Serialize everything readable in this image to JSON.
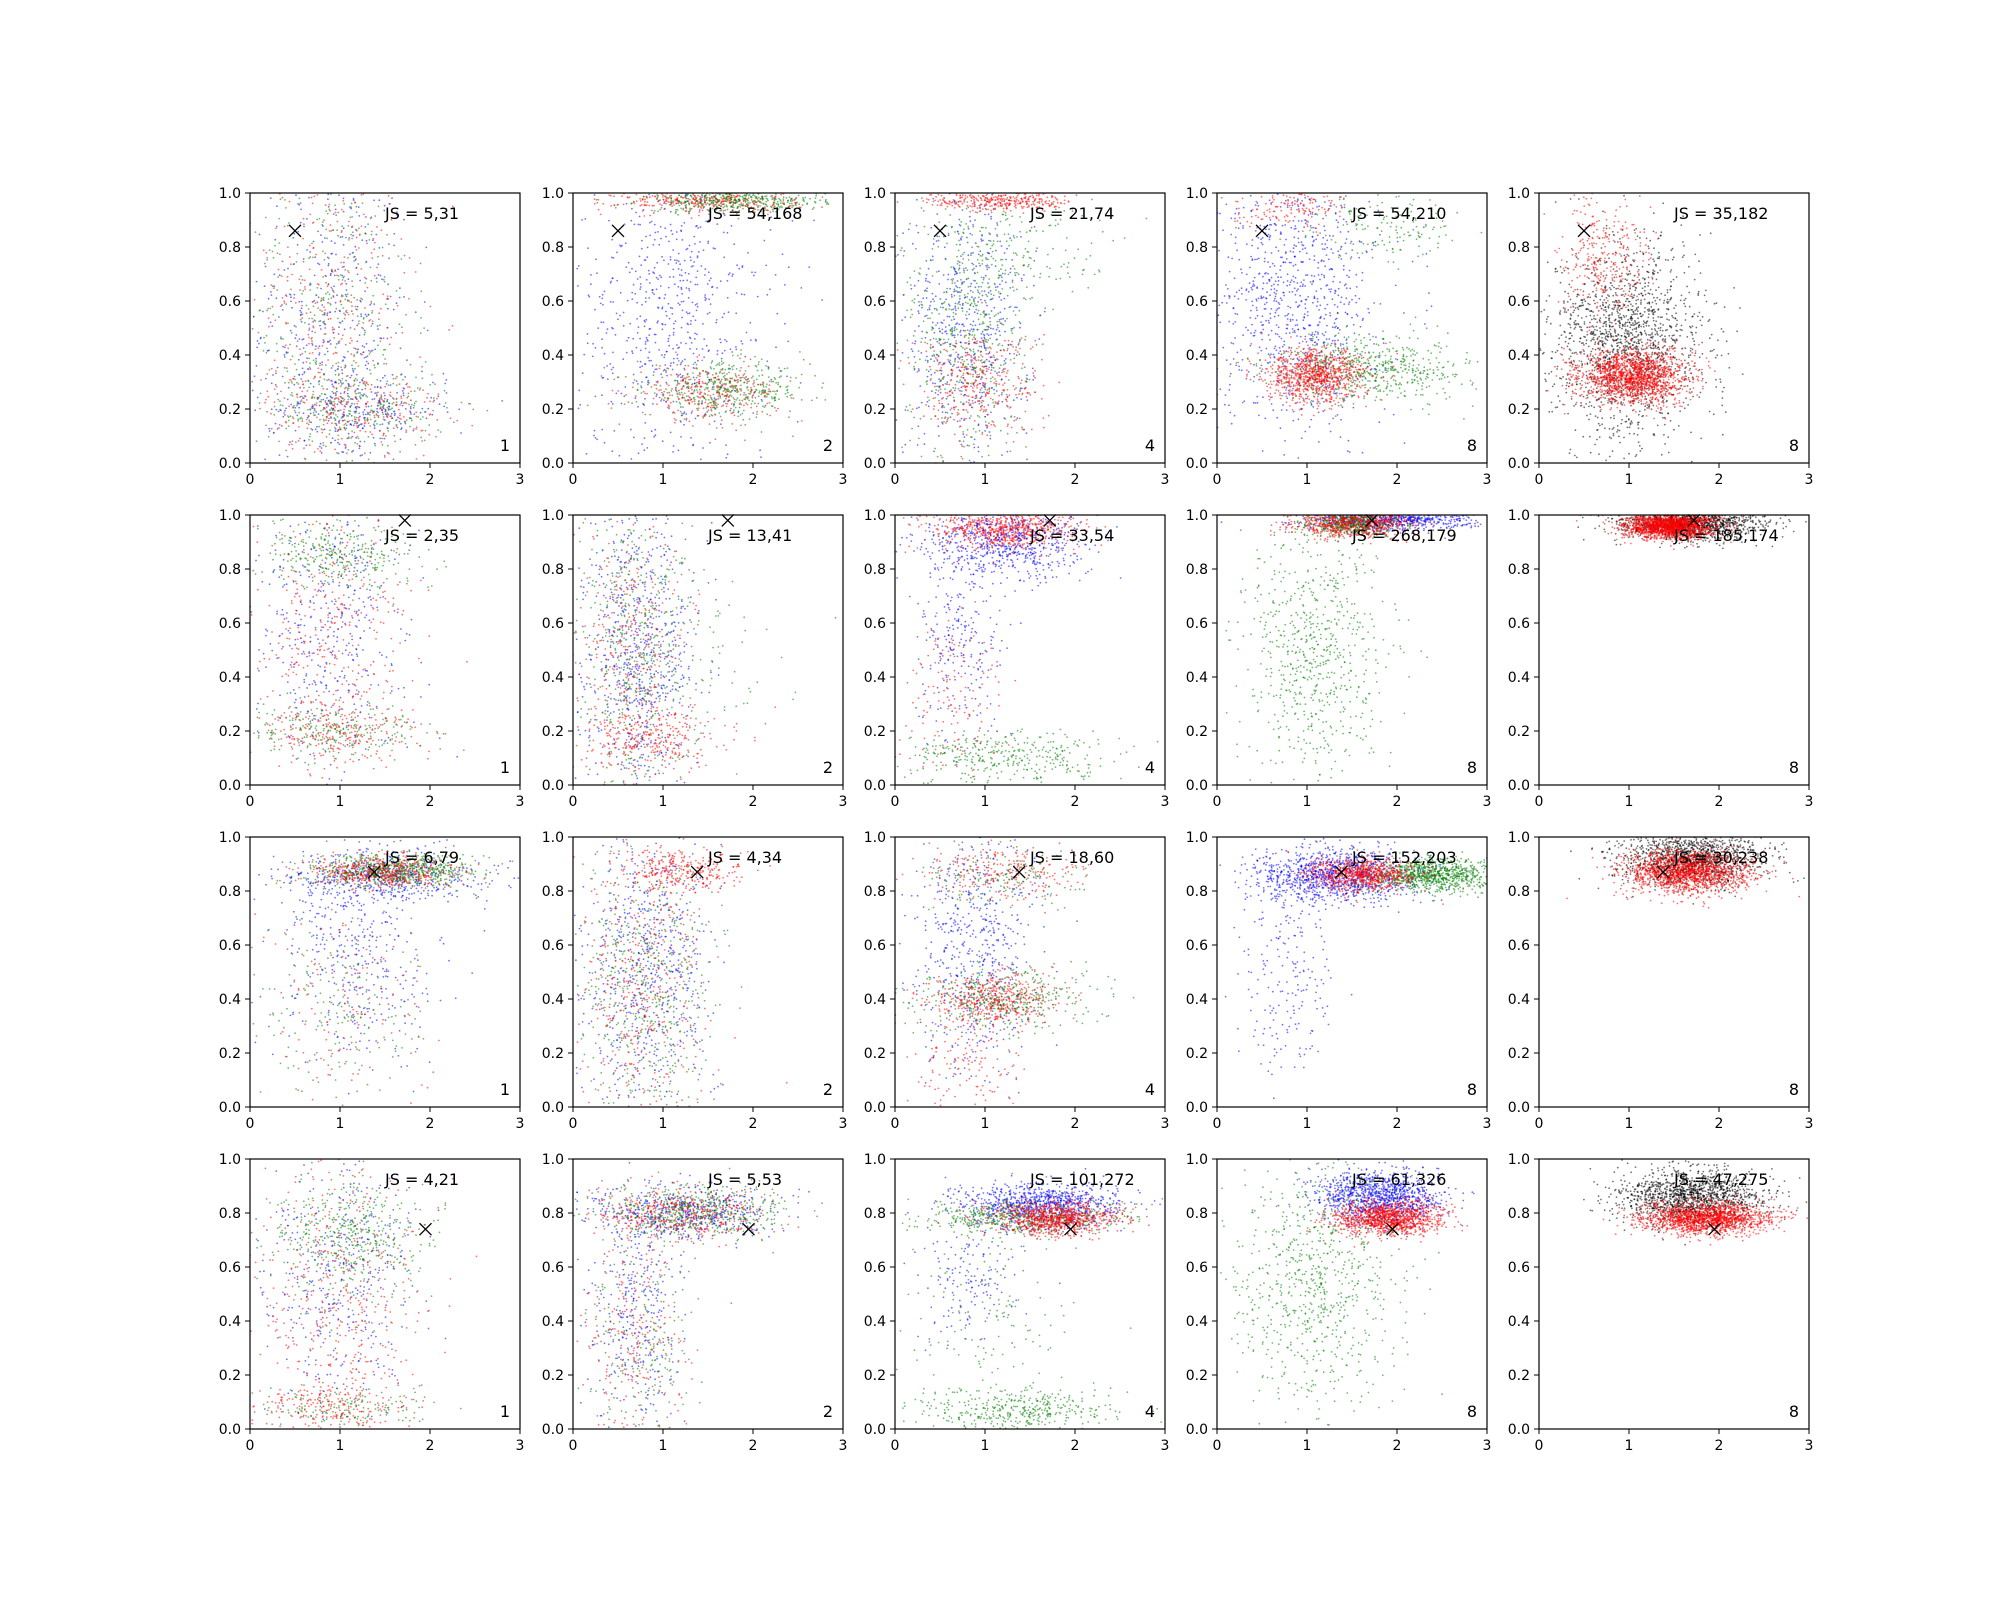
{
  "figure": {
    "rows": 4,
    "cols": 5
  },
  "axes_defaults": {
    "xlim": [
      0,
      3
    ],
    "ylim": [
      0,
      1
    ],
    "xticks": [
      0,
      1,
      2,
      3
    ],
    "yticks": [
      0.0,
      0.2,
      0.4,
      0.6,
      0.8,
      1.0
    ],
    "xtick_labels": [
      "0",
      "1",
      "2",
      "3"
    ],
    "ytick_labels": [
      "0.0",
      "0.2",
      "0.4",
      "0.6",
      "0.8",
      "1.0"
    ]
  },
  "colors": {
    "blue": "#0000ff",
    "green": "#008000",
    "red": "#ff0000",
    "black": "#000000"
  },
  "chart_data": [
    {
      "type": "scatter",
      "row": 0,
      "col": 0,
      "annotation": "JS = 5,31",
      "corner_label": "1",
      "marker": {
        "x": 0.5,
        "y": 0.86
      },
      "clusters": [
        {
          "color": "blue",
          "cx": 0.9,
          "cy": 0.55,
          "sx": 0.45,
          "sy": 0.3,
          "n": 420
        },
        {
          "color": "red",
          "cx": 0.9,
          "cy": 0.55,
          "sx": 0.45,
          "sy": 0.3,
          "n": 380
        },
        {
          "color": "green",
          "cx": 0.9,
          "cy": 0.55,
          "sx": 0.45,
          "sy": 0.3,
          "n": 380
        },
        {
          "color": "blue",
          "cx": 1.2,
          "cy": 0.2,
          "sx": 0.5,
          "sy": 0.07,
          "n": 250
        },
        {
          "color": "green",
          "cx": 1.2,
          "cy": 0.2,
          "sx": 0.5,
          "sy": 0.07,
          "n": 260
        },
        {
          "color": "red",
          "cx": 1.2,
          "cy": 0.2,
          "sx": 0.5,
          "sy": 0.07,
          "n": 220
        }
      ]
    },
    {
      "type": "scatter",
      "row": 0,
      "col": 1,
      "annotation": "JS = 54,168",
      "corner_label": "2",
      "marker": {
        "x": 0.5,
        "y": 0.86
      },
      "clusters": [
        {
          "color": "blue",
          "cx": 1.1,
          "cy": 0.55,
          "sx": 0.55,
          "sy": 0.3,
          "n": 700
        },
        {
          "color": "green",
          "cx": 1.7,
          "cy": 0.27,
          "sx": 0.45,
          "sy": 0.05,
          "n": 450
        },
        {
          "color": "red",
          "cx": 1.5,
          "cy": 0.26,
          "sx": 0.4,
          "sy": 0.05,
          "n": 300
        },
        {
          "color": "red",
          "cx": 1.5,
          "cy": 0.97,
          "sx": 0.5,
          "sy": 0.02,
          "n": 350
        },
        {
          "color": "green",
          "cx": 1.8,
          "cy": 0.97,
          "sx": 0.5,
          "sy": 0.02,
          "n": 400
        }
      ]
    },
    {
      "type": "scatter",
      "row": 0,
      "col": 2,
      "annotation": "JS = 21,74",
      "corner_label": "4",
      "marker": {
        "x": 0.5,
        "y": 0.86
      },
      "clusters": [
        {
          "color": "blue",
          "cx": 0.8,
          "cy": 0.5,
          "sx": 0.35,
          "sy": 0.25,
          "n": 600
        },
        {
          "color": "green",
          "cx": 0.8,
          "cy": 0.5,
          "sx": 0.35,
          "sy": 0.25,
          "n": 600
        },
        {
          "color": "red",
          "cx": 0.9,
          "cy": 0.3,
          "sx": 0.35,
          "sy": 0.1,
          "n": 350
        },
        {
          "color": "red",
          "cx": 1.2,
          "cy": 0.97,
          "sx": 0.4,
          "sy": 0.02,
          "n": 350
        },
        {
          "color": "green",
          "cx": 1.5,
          "cy": 0.8,
          "sx": 0.5,
          "sy": 0.1,
          "n": 120
        }
      ]
    },
    {
      "type": "scatter",
      "row": 0,
      "col": 3,
      "annotation": "JS = 54,210",
      "corner_label": "8",
      "marker": {
        "x": 0.5,
        "y": 0.86
      },
      "clusters": [
        {
          "color": "blue",
          "cx": 0.9,
          "cy": 0.6,
          "sx": 0.45,
          "sy": 0.25,
          "n": 900
        },
        {
          "color": "green",
          "cx": 1.7,
          "cy": 0.35,
          "sx": 0.55,
          "sy": 0.06,
          "n": 600
        },
        {
          "color": "red",
          "cx": 1.1,
          "cy": 0.32,
          "sx": 0.28,
          "sy": 0.05,
          "n": 900
        },
        {
          "color": "red",
          "cx": 0.8,
          "cy": 0.95,
          "sx": 0.3,
          "sy": 0.04,
          "n": 150
        },
        {
          "color": "green",
          "cx": 1.9,
          "cy": 0.88,
          "sx": 0.4,
          "sy": 0.06,
          "n": 150
        }
      ]
    },
    {
      "type": "scatter",
      "row": 0,
      "col": 4,
      "annotation": "JS = 35,182",
      "corner_label": "8",
      "marker": {
        "x": 0.5,
        "y": 0.86
      },
      "clusters": [
        {
          "color": "black",
          "cx": 1.0,
          "cy": 0.45,
          "sx": 0.42,
          "sy": 0.18,
          "n": 1600
        },
        {
          "color": "red",
          "cx": 1.05,
          "cy": 0.32,
          "sx": 0.3,
          "sy": 0.05,
          "n": 1600
        },
        {
          "color": "red",
          "cx": 0.7,
          "cy": 0.75,
          "sx": 0.25,
          "sy": 0.12,
          "n": 300
        }
      ]
    },
    {
      "type": "scatter",
      "row": 1,
      "col": 0,
      "annotation": "JS = 2,35",
      "corner_label": "1",
      "marker": {
        "x": 1.72,
        "y": 0.98
      },
      "clusters": [
        {
          "color": "blue",
          "cx": 0.9,
          "cy": 0.55,
          "sx": 0.45,
          "sy": 0.3,
          "n": 450
        },
        {
          "color": "red",
          "cx": 0.9,
          "cy": 0.55,
          "sx": 0.45,
          "sy": 0.3,
          "n": 400
        },
        {
          "color": "green",
          "cx": 1.0,
          "cy": 0.85,
          "sx": 0.45,
          "sy": 0.06,
          "n": 300
        },
        {
          "color": "green",
          "cx": 1.0,
          "cy": 0.2,
          "sx": 0.5,
          "sy": 0.05,
          "n": 250
        },
        {
          "color": "red",
          "cx": 1.0,
          "cy": 0.2,
          "sx": 0.5,
          "sy": 0.05,
          "n": 200
        }
      ]
    },
    {
      "type": "scatter",
      "row": 1,
      "col": 1,
      "annotation": "JS = 13,41",
      "corner_label": "2",
      "marker": {
        "x": 1.72,
        "y": 0.98
      },
      "clusters": [
        {
          "color": "blue",
          "cx": 0.7,
          "cy": 0.5,
          "sx": 0.32,
          "sy": 0.28,
          "n": 700
        },
        {
          "color": "green",
          "cx": 0.7,
          "cy": 0.5,
          "sx": 0.32,
          "sy": 0.28,
          "n": 450
        },
        {
          "color": "red",
          "cx": 0.7,
          "cy": 0.5,
          "sx": 0.32,
          "sy": 0.28,
          "n": 400
        },
        {
          "color": "red",
          "cx": 0.9,
          "cy": 0.17,
          "sx": 0.4,
          "sy": 0.05,
          "n": 250
        },
        {
          "color": "green",
          "cx": 1.2,
          "cy": 0.45,
          "sx": 0.5,
          "sy": 0.2,
          "n": 100
        }
      ]
    },
    {
      "type": "scatter",
      "row": 1,
      "col": 2,
      "annotation": "JS = 33,54",
      "corner_label": "4",
      "marker": {
        "x": 1.72,
        "y": 0.98
      },
      "clusters": [
        {
          "color": "blue",
          "cx": 1.2,
          "cy": 0.9,
          "sx": 0.45,
          "sy": 0.07,
          "n": 700
        },
        {
          "color": "red",
          "cx": 1.2,
          "cy": 0.95,
          "sx": 0.4,
          "sy": 0.04,
          "n": 700
        },
        {
          "color": "blue",
          "cx": 0.7,
          "cy": 0.55,
          "sx": 0.25,
          "sy": 0.2,
          "n": 250
        },
        {
          "color": "green",
          "cx": 1.3,
          "cy": 0.1,
          "sx": 0.6,
          "sy": 0.05,
          "n": 350
        },
        {
          "color": "red",
          "cx": 0.6,
          "cy": 0.3,
          "sx": 0.3,
          "sy": 0.15,
          "n": 150
        }
      ]
    },
    {
      "type": "scatter",
      "row": 1,
      "col": 3,
      "annotation": "JS = 268,179",
      "corner_label": "8",
      "marker": {
        "x": 1.72,
        "y": 0.98
      },
      "clusters": [
        {
          "color": "blue",
          "cx": 1.9,
          "cy": 0.98,
          "sx": 0.45,
          "sy": 0.02,
          "n": 700
        },
        {
          "color": "green",
          "cx": 1.1,
          "cy": 0.5,
          "sx": 0.4,
          "sy": 0.25,
          "n": 700
        },
        {
          "color": "red",
          "cx": 1.5,
          "cy": 0.97,
          "sx": 0.3,
          "sy": 0.025,
          "n": 900
        },
        {
          "color": "green",
          "cx": 1.5,
          "cy": 0.97,
          "sx": 0.3,
          "sy": 0.025,
          "n": 300
        }
      ]
    },
    {
      "type": "scatter",
      "row": 1,
      "col": 4,
      "annotation": "JS = 185,174",
      "corner_label": "8",
      "marker": {
        "x": 1.72,
        "y": 0.98
      },
      "clusters": [
        {
          "color": "black",
          "cx": 1.7,
          "cy": 0.97,
          "sx": 0.4,
          "sy": 0.03,
          "n": 1200
        },
        {
          "color": "red",
          "cx": 1.45,
          "cy": 0.96,
          "sx": 0.25,
          "sy": 0.025,
          "n": 1800
        }
      ]
    },
    {
      "type": "scatter",
      "row": 2,
      "col": 0,
      "annotation": "JS = 6,79",
      "corner_label": "1",
      "marker": {
        "x": 1.38,
        "y": 0.87
      },
      "clusters": [
        {
          "color": "blue",
          "cx": 1.5,
          "cy": 0.85,
          "sx": 0.55,
          "sy": 0.05,
          "n": 500
        },
        {
          "color": "green",
          "cx": 1.6,
          "cy": 0.87,
          "sx": 0.45,
          "sy": 0.03,
          "n": 700
        },
        {
          "color": "red",
          "cx": 1.5,
          "cy": 0.87,
          "sx": 0.4,
          "sy": 0.03,
          "n": 500
        },
        {
          "color": "blue",
          "cx": 1.2,
          "cy": 0.55,
          "sx": 0.45,
          "sy": 0.2,
          "n": 350
        },
        {
          "color": "green",
          "cx": 1.0,
          "cy": 0.35,
          "sx": 0.5,
          "sy": 0.2,
          "n": 200
        },
        {
          "color": "red",
          "cx": 1.0,
          "cy": 0.35,
          "sx": 0.5,
          "sy": 0.2,
          "n": 150
        }
      ]
    },
    {
      "type": "scatter",
      "row": 2,
      "col": 1,
      "annotation": "JS = 4,34",
      "corner_label": "2",
      "marker": {
        "x": 1.38,
        "y": 0.87
      },
      "clusters": [
        {
          "color": "blue",
          "cx": 0.8,
          "cy": 0.5,
          "sx": 0.38,
          "sy": 0.28,
          "n": 650
        },
        {
          "color": "green",
          "cx": 0.8,
          "cy": 0.45,
          "sx": 0.38,
          "sy": 0.28,
          "n": 550
        },
        {
          "color": "red",
          "cx": 0.8,
          "cy": 0.45,
          "sx": 0.38,
          "sy": 0.28,
          "n": 450
        },
        {
          "color": "red",
          "cx": 1.2,
          "cy": 0.88,
          "sx": 0.35,
          "sy": 0.04,
          "n": 300
        }
      ]
    },
    {
      "type": "scatter",
      "row": 2,
      "col": 2,
      "annotation": "JS = 18,60",
      "corner_label": "4",
      "marker": {
        "x": 1.38,
        "y": 0.87
      },
      "clusters": [
        {
          "color": "blue",
          "cx": 0.9,
          "cy": 0.6,
          "sx": 0.35,
          "sy": 0.25,
          "n": 600
        },
        {
          "color": "red",
          "cx": 1.1,
          "cy": 0.4,
          "sx": 0.35,
          "sy": 0.05,
          "n": 500
        },
        {
          "color": "green",
          "cx": 1.2,
          "cy": 0.4,
          "sx": 0.5,
          "sy": 0.06,
          "n": 400
        },
        {
          "color": "red",
          "cx": 1.2,
          "cy": 0.87,
          "sx": 0.45,
          "sy": 0.05,
          "n": 250
        },
        {
          "color": "green",
          "cx": 1.2,
          "cy": 0.85,
          "sx": 0.45,
          "sy": 0.05,
          "n": 150
        },
        {
          "color": "red",
          "cx": 0.8,
          "cy": 0.15,
          "sx": 0.35,
          "sy": 0.08,
          "n": 120
        }
      ]
    },
    {
      "type": "scatter",
      "row": 2,
      "col": 3,
      "annotation": "JS = 152,203",
      "corner_label": "8",
      "marker": {
        "x": 1.38,
        "y": 0.87
      },
      "clusters": [
        {
          "color": "blue",
          "cx": 1.3,
          "cy": 0.86,
          "sx": 0.45,
          "sy": 0.05,
          "n": 1100
        },
        {
          "color": "blue",
          "cx": 0.8,
          "cy": 0.5,
          "sx": 0.25,
          "sy": 0.2,
          "n": 200
        },
        {
          "color": "green",
          "cx": 2.4,
          "cy": 0.86,
          "sx": 0.35,
          "sy": 0.03,
          "n": 900
        },
        {
          "color": "red",
          "cx": 1.6,
          "cy": 0.86,
          "sx": 0.3,
          "sy": 0.03,
          "n": 800
        }
      ]
    },
    {
      "type": "scatter",
      "row": 2,
      "col": 4,
      "annotation": "JS = 30,238",
      "corner_label": "8",
      "marker": {
        "x": 1.38,
        "y": 0.87
      },
      "clusters": [
        {
          "color": "black",
          "cx": 1.7,
          "cy": 0.92,
          "sx": 0.4,
          "sy": 0.05,
          "n": 1300
        },
        {
          "color": "red",
          "cx": 1.65,
          "cy": 0.87,
          "sx": 0.35,
          "sy": 0.04,
          "n": 1600
        }
      ]
    },
    {
      "type": "scatter",
      "row": 3,
      "col": 0,
      "annotation": "JS = 4,21",
      "corner_label": "1",
      "marker": {
        "x": 1.95,
        "y": 0.74
      },
      "clusters": [
        {
          "color": "blue",
          "cx": 1.0,
          "cy": 0.55,
          "sx": 0.45,
          "sy": 0.28,
          "n": 450
        },
        {
          "color": "green",
          "cx": 1.1,
          "cy": 0.7,
          "sx": 0.45,
          "sy": 0.12,
          "n": 450
        },
        {
          "color": "red",
          "cx": 1.0,
          "cy": 0.5,
          "sx": 0.45,
          "sy": 0.28,
          "n": 450
        },
        {
          "color": "red",
          "cx": 0.9,
          "cy": 0.08,
          "sx": 0.45,
          "sy": 0.04,
          "n": 200
        },
        {
          "color": "green",
          "cx": 1.0,
          "cy": 0.08,
          "sx": 0.45,
          "sy": 0.04,
          "n": 150
        }
      ]
    },
    {
      "type": "scatter",
      "row": 3,
      "col": 1,
      "annotation": "JS = 5,53",
      "corner_label": "2",
      "marker": {
        "x": 1.95,
        "y": 0.74
      },
      "clusters": [
        {
          "color": "blue",
          "cx": 1.2,
          "cy": 0.8,
          "sx": 0.5,
          "sy": 0.05,
          "n": 500
        },
        {
          "color": "green",
          "cx": 1.3,
          "cy": 0.8,
          "sx": 0.5,
          "sy": 0.05,
          "n": 550
        },
        {
          "color": "red",
          "cx": 1.2,
          "cy": 0.8,
          "sx": 0.45,
          "sy": 0.05,
          "n": 450
        },
        {
          "color": "blue",
          "cx": 0.7,
          "cy": 0.4,
          "sx": 0.25,
          "sy": 0.2,
          "n": 300
        },
        {
          "color": "red",
          "cx": 0.7,
          "cy": 0.3,
          "sx": 0.28,
          "sy": 0.2,
          "n": 250
        },
        {
          "color": "green",
          "cx": 0.8,
          "cy": 0.3,
          "sx": 0.3,
          "sy": 0.2,
          "n": 200
        }
      ]
    },
    {
      "type": "scatter",
      "row": 3,
      "col": 2,
      "annotation": "JS = 101,272",
      "corner_label": "4",
      "marker": {
        "x": 1.95,
        "y": 0.74
      },
      "clusters": [
        {
          "color": "blue",
          "cx": 1.6,
          "cy": 0.83,
          "sx": 0.45,
          "sy": 0.04,
          "n": 900
        },
        {
          "color": "green",
          "cx": 1.4,
          "cy": 0.78,
          "sx": 0.55,
          "sy": 0.03,
          "n": 500
        },
        {
          "color": "red",
          "cx": 1.8,
          "cy": 0.78,
          "sx": 0.35,
          "sy": 0.03,
          "n": 900
        },
        {
          "color": "blue",
          "cx": 0.8,
          "cy": 0.55,
          "sx": 0.3,
          "sy": 0.12,
          "n": 150
        },
        {
          "color": "green",
          "cx": 1.3,
          "cy": 0.07,
          "sx": 0.6,
          "sy": 0.04,
          "n": 400
        },
        {
          "color": "green",
          "cx": 1.0,
          "cy": 0.4,
          "sx": 0.45,
          "sy": 0.2,
          "n": 150
        }
      ]
    },
    {
      "type": "scatter",
      "row": 3,
      "col": 3,
      "annotation": "JS = 61,326",
      "corner_label": "8",
      "marker": {
        "x": 1.95,
        "y": 0.74
      },
      "clusters": [
        {
          "color": "blue",
          "cx": 1.8,
          "cy": 0.86,
          "sx": 0.35,
          "sy": 0.05,
          "n": 1100
        },
        {
          "color": "red",
          "cx": 1.9,
          "cy": 0.78,
          "sx": 0.3,
          "sy": 0.03,
          "n": 1200
        },
        {
          "color": "green",
          "cx": 1.1,
          "cy": 0.55,
          "sx": 0.45,
          "sy": 0.25,
          "n": 800
        }
      ]
    },
    {
      "type": "scatter",
      "row": 3,
      "col": 4,
      "annotation": "JS = 47,275",
      "corner_label": "8",
      "marker": {
        "x": 1.95,
        "y": 0.74
      },
      "clusters": [
        {
          "color": "black",
          "cx": 1.7,
          "cy": 0.86,
          "sx": 0.4,
          "sy": 0.05,
          "n": 1400
        },
        {
          "color": "red",
          "cx": 1.85,
          "cy": 0.78,
          "sx": 0.35,
          "sy": 0.03,
          "n": 1600
        }
      ]
    }
  ]
}
